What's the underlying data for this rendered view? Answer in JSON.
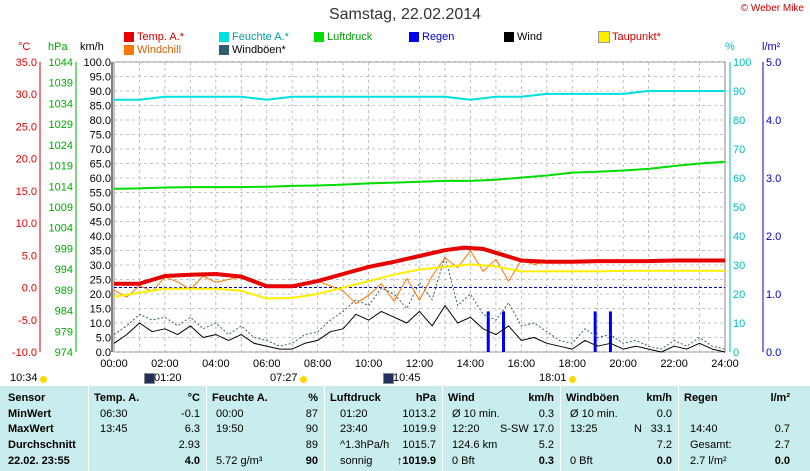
{
  "header": {
    "title": "Samstag, 22.02.2014",
    "copyright": "© Weber Mike"
  },
  "legend": [
    {
      "label": "Temp. A.*",
      "color": "#e80000"
    },
    {
      "label": "Feuchte A.*",
      "color": "#00e0e0"
    },
    {
      "label": "Luftdruck",
      "color": "#00dd00"
    },
    {
      "label": "Regen",
      "color": "#0000ee"
    },
    {
      "label": "Wind",
      "color": "#000000"
    },
    {
      "label": "Taupunkt*",
      "color": "#ffee00"
    },
    {
      "label": "Windchill",
      "color": "#ff7700"
    },
    {
      "label": "Windböen*",
      "color": "#2f5f6f"
    }
  ],
  "axis_units": {
    "temp": "°C",
    "pressure": "hPa",
    "wind": "km/h",
    "humidity": "%",
    "rain": "l/m²"
  },
  "events": {
    "sunrise": "07:27",
    "sunset": "18:01",
    "left_time": "10:34",
    "moon1": "01:20",
    "moon2": "10:45"
  },
  "chart_data": {
    "type": "line",
    "title": "Samstag, 22.02.2014",
    "x_ticks": [
      "00:00",
      "02:00",
      "04:00",
      "06:00",
      "08:00",
      "10:00",
      "12:00",
      "14:00",
      "16:00",
      "18:00",
      "20:00",
      "22:00",
      "24:00"
    ],
    "axes": {
      "temp": {
        "unit": "°C",
        "range": [
          -10,
          35
        ],
        "ticks": [
          "35.0",
          "30.0",
          "25.0",
          "20.0",
          "15.0",
          "10.0",
          "5.0",
          "0.0",
          "-5.0",
          "-10.0"
        ]
      },
      "pressure": {
        "unit": "hPa",
        "range": [
          974,
          1044
        ],
        "ticks": [
          "1044",
          "1039",
          "1034",
          "1029",
          "1024",
          "1019",
          "1014",
          "1009",
          "1004",
          "999",
          "994",
          "989",
          "984",
          "979",
          "974"
        ]
      },
      "wind": {
        "unit": "km/h",
        "range": [
          0,
          100
        ],
        "ticks": [
          "100.0",
          "95.0",
          "90.0",
          "85.0",
          "80.0",
          "75.0",
          "70.0",
          "65.0",
          "60.0",
          "55.0",
          "50.0",
          "45.0",
          "40.0",
          "35.0",
          "30.0",
          "25.0",
          "20.0",
          "15.0",
          "10.0",
          "5.0",
          "0.0"
        ]
      },
      "humidity": {
        "unit": "%",
        "range": [
          0,
          100
        ],
        "ticks": [
          "100",
          "90",
          "80",
          "70",
          "60",
          "50",
          "40",
          "30",
          "20",
          "10",
          "0"
        ]
      },
      "rain": {
        "unit": "l/m²",
        "range": [
          0,
          5
        ],
        "ticks": [
          "5.0",
          "4.0",
          "3.0",
          "2.0",
          "1.0",
          "0.0"
        ]
      }
    },
    "series": [
      {
        "name": "Temp. A.*",
        "axis": "temp",
        "color": "#e80000",
        "x": [
          0,
          1,
          2,
          3,
          4,
          5,
          6,
          7,
          8,
          9,
          10,
          11,
          12,
          13,
          13.75,
          14.5,
          15,
          16,
          17,
          18,
          19,
          20,
          21,
          22,
          23,
          24
        ],
        "y": [
          0.6,
          0.6,
          1.8,
          2.0,
          2.1,
          1.7,
          0.2,
          0.2,
          1.0,
          2.1,
          3.2,
          4.0,
          4.9,
          5.8,
          6.2,
          6.0,
          5.4,
          4.2,
          4.0,
          4.0,
          4.1,
          4.1,
          4.1,
          4.2,
          4.2,
          4.2
        ]
      },
      {
        "name": "Feuchte A.*",
        "axis": "humidity",
        "color": "#00e0e0",
        "x": [
          0,
          1,
          2,
          3,
          4,
          5,
          6,
          7,
          8,
          9,
          10,
          11,
          12,
          13,
          14,
          15,
          16,
          17,
          18,
          19,
          20,
          21,
          22,
          23,
          24
        ],
        "y": [
          87,
          87,
          88,
          88,
          88,
          88,
          87,
          88,
          88,
          88,
          88,
          88,
          88,
          88,
          87,
          88,
          88,
          89,
          89,
          89,
          89,
          90,
          90,
          90,
          90
        ]
      },
      {
        "name": "Luftdruck",
        "axis": "pressure",
        "color": "#00dd00",
        "x": [
          0,
          1,
          2,
          3,
          4,
          5,
          6,
          7,
          8,
          9,
          10,
          11,
          12,
          13,
          14,
          15,
          16,
          17,
          18,
          19,
          20,
          21,
          22,
          23,
          24
        ],
        "y": [
          1013.4,
          1013.5,
          1013.7,
          1013.8,
          1013.8,
          1013.8,
          1013.9,
          1014.1,
          1014.2,
          1014.4,
          1014.7,
          1014.9,
          1015.1,
          1015.3,
          1015.3,
          1015.6,
          1016.1,
          1016.6,
          1017.3,
          1017.5,
          1017.8,
          1018.2,
          1018.9,
          1019.5,
          1019.9
        ]
      },
      {
        "name": "Taupunkt*",
        "axis": "temp",
        "color": "#ffee00",
        "x": [
          0,
          1,
          2,
          3,
          4,
          5,
          6,
          7,
          8,
          9,
          10,
          11,
          12,
          13,
          14,
          15,
          16,
          17,
          18,
          19,
          20,
          21,
          22,
          23,
          24
        ],
        "y": [
          -1.4,
          -0.8,
          -0.2,
          -0.2,
          -0.2,
          -0.5,
          -1.7,
          -1.6,
          -1.0,
          0.0,
          1.0,
          2.0,
          2.8,
          3.2,
          3.6,
          3.3,
          2.5,
          2.5,
          2.5,
          2.5,
          2.6,
          2.6,
          2.6,
          2.6,
          2.6
        ]
      },
      {
        "name": "Windchill",
        "axis": "temp",
        "color": "#ff7700",
        "x": [
          0,
          0.5,
          1,
          1.5,
          2,
          2.5,
          3,
          3.5,
          4,
          5,
          6,
          7,
          8,
          9,
          9.5,
          10,
          10.5,
          11,
          11.5,
          12,
          12.5,
          13,
          13.5,
          14,
          14.5,
          15,
          15.5,
          16,
          16.5,
          17
        ],
        "y": [
          -0.4,
          -1.5,
          0.3,
          -0.6,
          1.6,
          0.9,
          -0.3,
          1.8,
          0.8,
          1.7,
          0.2,
          0.3,
          1.0,
          -0.5,
          -2.5,
          -1.2,
          0.6,
          -2.1,
          1.4,
          -2.0,
          1.8,
          4.6,
          3.1,
          5.7,
          2.5,
          4.4,
          1.0,
          4.2,
          3.6,
          4.0
        ]
      },
      {
        "name": "Wind",
        "axis": "wind",
        "color": "#000000",
        "x": [
          0,
          0.5,
          1,
          1.5,
          2,
          2.5,
          3,
          3.5,
          4,
          4.5,
          5,
          5.5,
          6,
          6.5,
          7,
          7.5,
          8,
          8.5,
          9,
          9.5,
          10,
          10.5,
          11,
          11.5,
          12,
          12.5,
          13,
          13.5,
          14,
          14.5,
          15,
          15.5,
          16,
          16.5,
          17,
          17.5,
          18,
          18.5,
          19,
          19.5,
          20,
          20.5,
          21,
          21.5,
          22,
          22.5,
          23,
          23.5,
          24
        ],
        "y": [
          3,
          6,
          10,
          7,
          8,
          6,
          9,
          5,
          6,
          4,
          6,
          3,
          2,
          1,
          1,
          3,
          4,
          7,
          8,
          13,
          11,
          14,
          12,
          10,
          14,
          9,
          16,
          10,
          12,
          8,
          6,
          9,
          4,
          5,
          3,
          2,
          1,
          4,
          2,
          3,
          1,
          2,
          1,
          0,
          2,
          1,
          3,
          1,
          0
        ]
      },
      {
        "name": "Windböen*",
        "axis": "wind",
        "color": "#2f5f6f",
        "x": [
          0,
          0.5,
          1,
          1.5,
          2,
          2.5,
          3,
          3.5,
          4,
          4.5,
          5,
          5.5,
          6,
          6.5,
          7,
          7.5,
          8,
          8.5,
          9,
          9.5,
          10,
          10.5,
          11,
          11.5,
          12,
          12.5,
          13,
          13.5,
          14,
          14.5,
          15,
          15.5,
          16,
          16.5,
          17,
          17.5,
          18,
          18.5,
          19,
          19.5,
          20,
          20.5,
          21,
          21.5,
          22,
          22.5,
          23,
          23.5,
          24
        ],
        "y": [
          6,
          9,
          13,
          11,
          12,
          9,
          12,
          8,
          10,
          6,
          9,
          5,
          4,
          2,
          3,
          6,
          7,
          11,
          14,
          18,
          16,
          22,
          20,
          15,
          24,
          18,
          33,
          16,
          20,
          13,
          11,
          17,
          9,
          10,
          7,
          4,
          3,
          8,
          5,
          6,
          3,
          4,
          2,
          1,
          4,
          2,
          5,
          2,
          1
        ]
      },
      {
        "name": "Regen",
        "axis": "rain",
        "type": "bar",
        "color": "#0000ee",
        "x": [
          14.7,
          15.3,
          18.9,
          19.5
        ],
        "y": [
          0.7,
          0.7,
          0.7,
          0.7
        ]
      }
    ],
    "annotations": [
      {
        "type": "dashed-line",
        "axis": "temp",
        "value": 0.0,
        "color": "#0000cc"
      }
    ]
  },
  "table": {
    "headers": {
      "sensor": "Sensor",
      "temp": "Temp. A.",
      "temp_unit": "°C",
      "hum": "Feuchte A.",
      "hum_unit": "%",
      "press": "Luftdruck",
      "press_unit": "hPa",
      "wind": "Wind",
      "wind_unit": "km/h",
      "gust": "Windböen",
      "gust_unit": "km/h",
      "rain": "Regen",
      "rain_unit": "l/m²"
    },
    "rows": [
      {
        "label": "MinWert",
        "temp_t": "06:30",
        "temp_v": "-0.1",
        "hum_t": "00:00",
        "hum_v": "87",
        "press_t": "01:20",
        "press_v": "1013.2",
        "wind_t": "Ø 10 min.",
        "wind_v": "0.3",
        "gust_t": "Ø 10 min.",
        "gust_v": "0.0",
        "rain_t": "",
        "rain_v": ""
      },
      {
        "label": "MaxWert",
        "temp_t": "13:45",
        "temp_v": "6.3",
        "hum_t": "19:50",
        "hum_v": "90",
        "press_t": "23:40",
        "press_v": "1019.9",
        "wind_t": "12:20",
        "wind_dir": "S-SW",
        "wind_v": "17.0",
        "gust_t": "13:25",
        "gust_dir": "N",
        "gust_v": "33.1",
        "rain_t": "14:40",
        "rain_v": "0.7"
      },
      {
        "label": "Durchschnitt",
        "temp_t": "",
        "temp_v": "2.93",
        "hum_t": "",
        "hum_v": "89",
        "press_t": "^1.3hPa/h",
        "press_v": "1015.7",
        "wind_t": "124.6 km",
        "wind_v": "5.2",
        "gust_t": "",
        "gust_v": "7.2",
        "rain_t": "Gesamt:",
        "rain_v": "2.7"
      },
      {
        "label": "22.02.  23:55",
        "temp_t": "",
        "temp_v": "4.0",
        "hum_t": "5.72 g/m³",
        "hum_v": "90",
        "press_t": "sonnig",
        "press_arrow": "↑",
        "press_v": "1019.9",
        "wind_t": "0 Bft",
        "wind_v": "0.3",
        "gust_t": "0 Bft",
        "gust_v": "0.0",
        "rain_t": "2.7 l/m²",
        "rain_v": "0.0"
      }
    ]
  }
}
